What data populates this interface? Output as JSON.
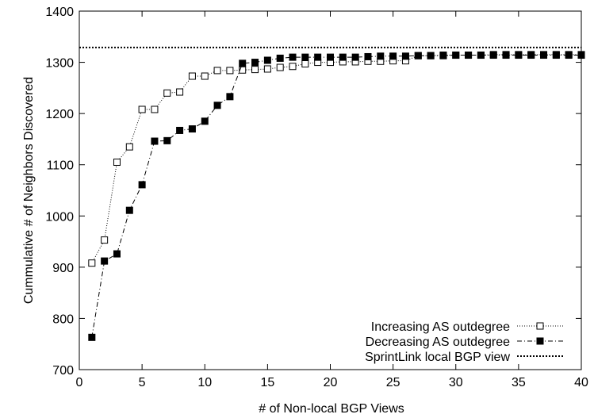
{
  "chart_data": {
    "type": "line",
    "title": "",
    "xlabel": "# of Non-local BGP Views",
    "ylabel": "Cummulative # of Neighbors Discovered",
    "xlim": [
      0,
      40
    ],
    "ylim": [
      700,
      1400
    ],
    "xticks": [
      0,
      5,
      10,
      15,
      20,
      25,
      30,
      35,
      40
    ],
    "yticks": [
      700,
      800,
      900,
      1000,
      1100,
      1200,
      1300,
      1400
    ],
    "grid": false,
    "legend_position": "bottom-right",
    "series": [
      {
        "name": "Increasing AS outdegree",
        "marker": "open-square",
        "line": "dotted",
        "x": [
          1,
          2,
          3,
          4,
          5,
          6,
          7,
          8,
          9,
          10,
          11,
          12,
          13,
          14,
          15,
          16,
          17,
          18,
          19,
          20,
          21,
          22,
          23,
          24,
          25,
          26,
          27,
          28,
          29,
          30,
          31,
          32,
          33,
          34,
          35,
          36,
          37,
          38,
          39,
          40
        ],
        "y": [
          908,
          953,
          1105,
          1135,
          1208,
          1208,
          1240,
          1242,
          1273,
          1273,
          1284,
          1284,
          1285,
          1286,
          1287,
          1290,
          1292,
          1297,
          1300,
          1300,
          1301,
          1301,
          1302,
          1302,
          1303,
          1303,
          1313,
          1313,
          1314,
          1314,
          1314,
          1314,
          1315,
          1315,
          1315,
          1315,
          1315,
          1315,
          1315,
          1315
        ]
      },
      {
        "name": "Decreasing AS outdegree",
        "marker": "filled-square",
        "line": "dash-dot",
        "x": [
          1,
          2,
          3,
          4,
          5,
          6,
          7,
          8,
          9,
          10,
          11,
          12,
          13,
          14,
          15,
          16,
          17,
          18,
          19,
          20,
          21,
          22,
          23,
          24,
          25,
          26,
          27,
          28,
          29,
          30,
          31,
          32,
          33,
          34,
          35,
          36,
          37,
          38,
          39,
          40
        ],
        "y": [
          763,
          912,
          926,
          1011,
          1061,
          1146,
          1147,
          1167,
          1170,
          1185,
          1216,
          1233,
          1298,
          1300,
          1304,
          1308,
          1310,
          1310,
          1310,
          1310,
          1310,
          1310,
          1311,
          1312,
          1312,
          1312,
          1313,
          1313,
          1313,
          1314,
          1314,
          1314,
          1314,
          1314,
          1314,
          1314,
          1314,
          1314,
          1314,
          1314
        ]
      },
      {
        "name": "SprintLink local BGP view",
        "marker": "none",
        "line": "dense-dotted",
        "constant_y": 1329
      }
    ]
  }
}
